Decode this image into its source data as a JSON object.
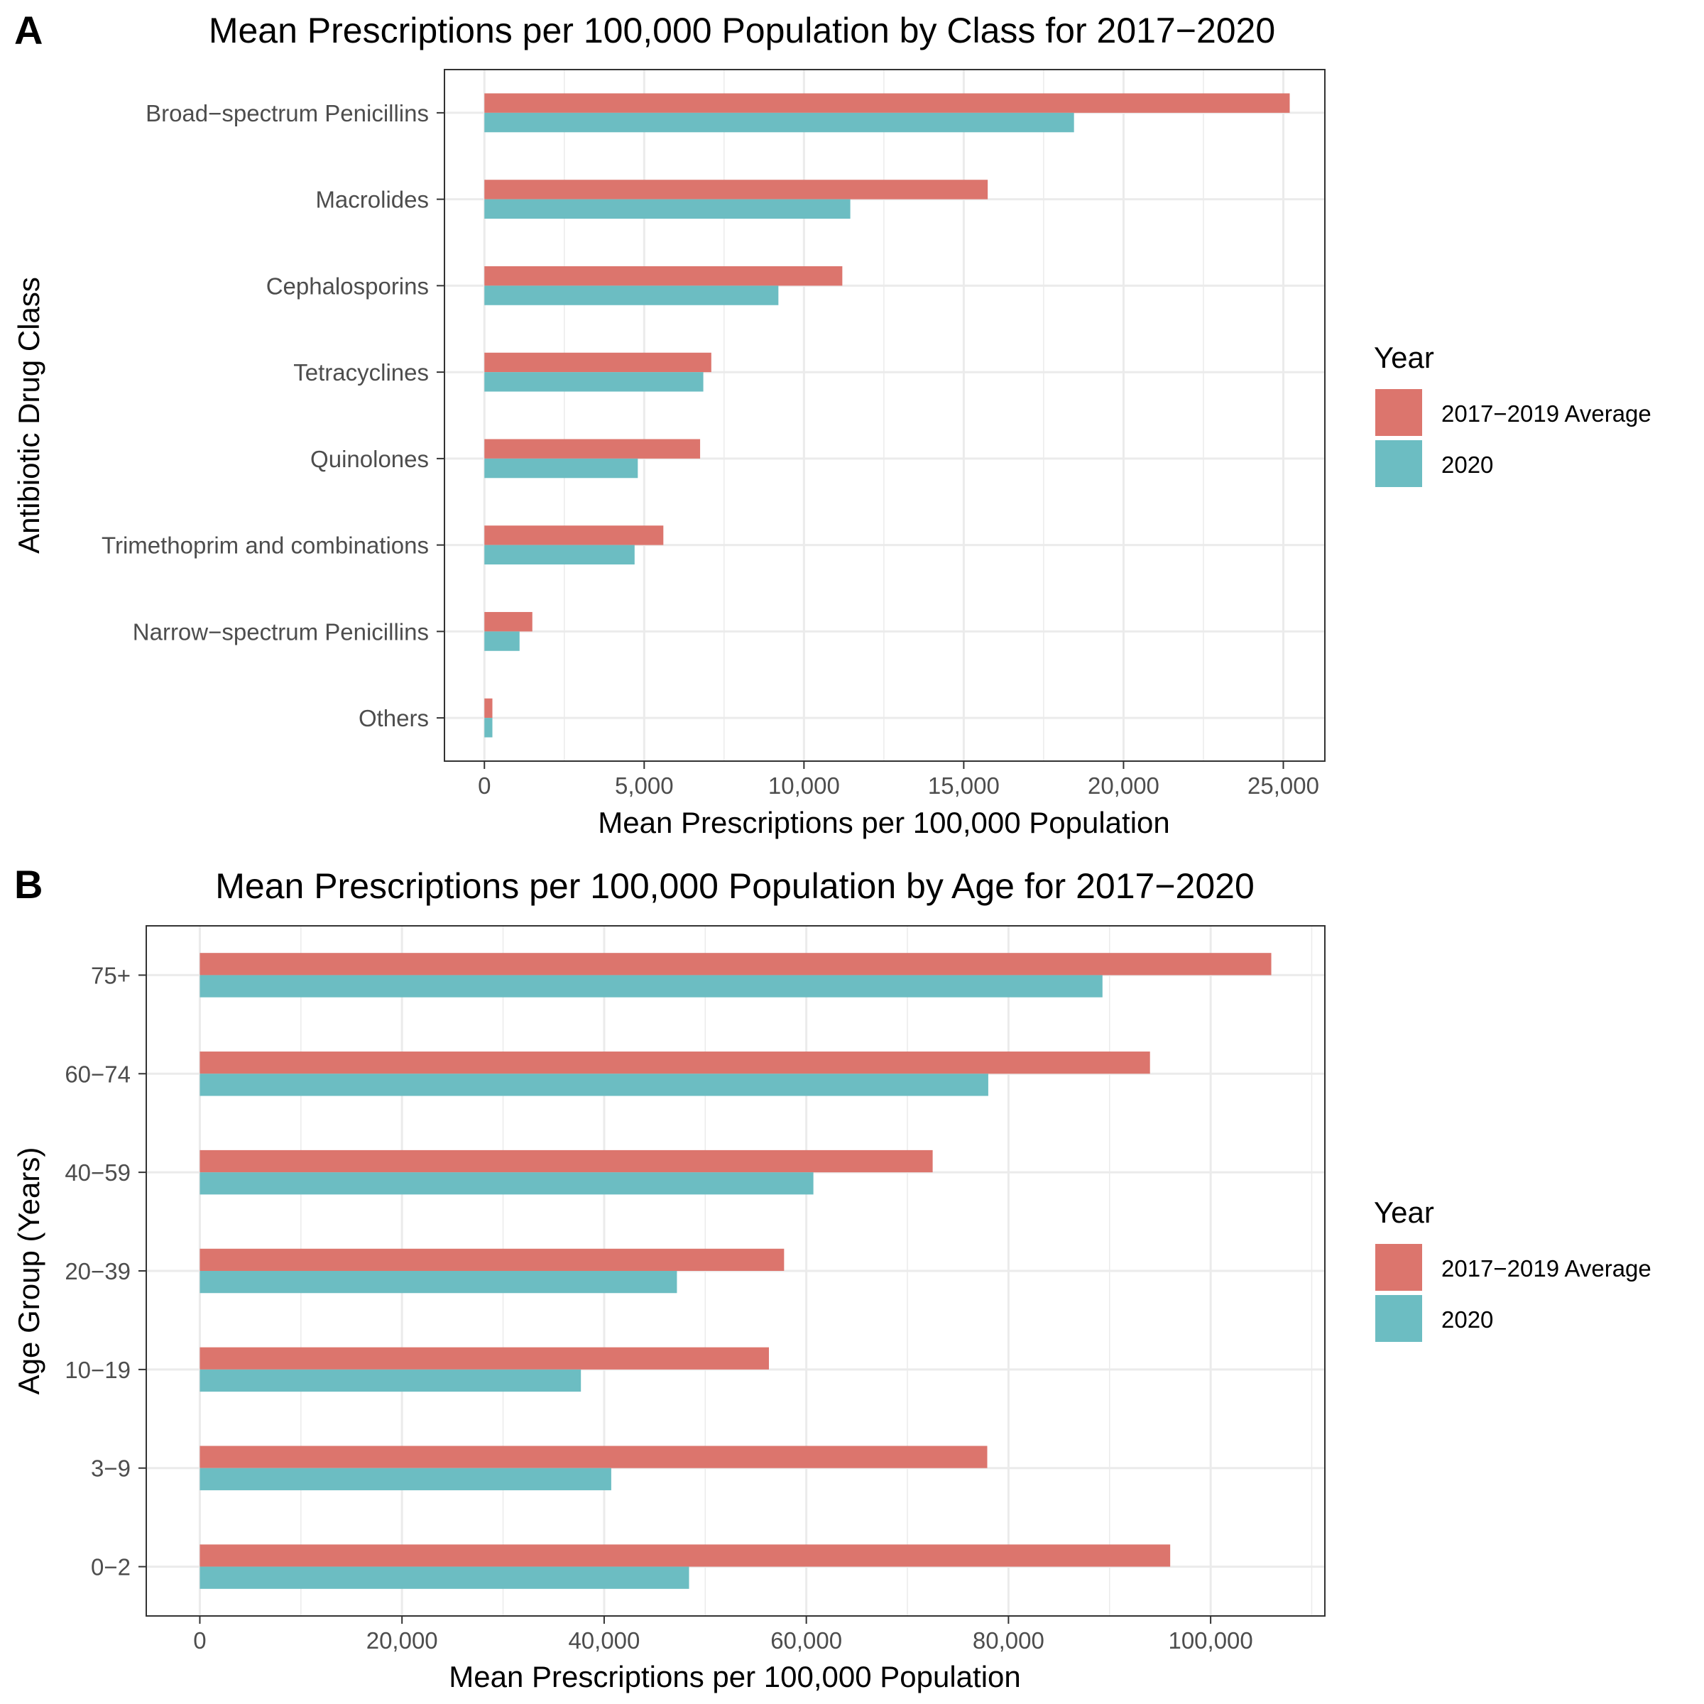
{
  "colors": {
    "s0": "#DC756D",
    "s1": "#6CBDC2",
    "grid": "#ebebeb",
    "frame": "#333333",
    "tick": "#4d4d4d"
  },
  "legend": {
    "title": "Year",
    "items": [
      "2017−2019 Average",
      "2020"
    ]
  },
  "chart_data": [
    {
      "type": "bar",
      "orientation": "horizontal",
      "panel": "A",
      "title": "Mean Prescriptions per 100,000 Population by Class for 2017−2020",
      "xlabel": "Mean Prescriptions per 100,000 Population",
      "ylabel": "Antibiotic Drug Class",
      "xlim": [
        -1250,
        26300
      ],
      "xticks": [
        0,
        5000,
        10000,
        15000,
        20000,
        25000
      ],
      "xtick_labels": [
        "0",
        "5,000",
        "10,000",
        "15,000",
        "20,000",
        "25,000"
      ],
      "categories": [
        "Broad−spectrum Penicillins",
        "Macrolides",
        "Cephalosporins",
        "Tetracyclines",
        "Quinolones",
        "Trimethoprim and combinations",
        "Narrow−spectrum Penicillins",
        "Others"
      ],
      "series": [
        {
          "name": "2017−2019 Average",
          "values": [
            25200,
            15750,
            11200,
            7100,
            6750,
            5600,
            1500,
            250
          ]
        },
        {
          "name": "2020",
          "values": [
            18450,
            11450,
            9200,
            6850,
            4800,
            4700,
            1100,
            250
          ]
        }
      ]
    },
    {
      "type": "bar",
      "orientation": "horizontal",
      "panel": "B",
      "title": "Mean Prescriptions per 100,000 Population by Age for 2017−2020",
      "xlabel": "Mean Prescriptions per 100,000 Population",
      "ylabel": "Age Group (Years)",
      "xlim": [
        -5300,
        111300
      ],
      "xticks": [
        0,
        20000,
        40000,
        60000,
        80000,
        100000
      ],
      "xtick_labels": [
        "0",
        "20,000",
        "40,000",
        "60,000",
        "80,000",
        "100,000"
      ],
      "categories": [
        "75+",
        "60−74",
        "40−59",
        "20−39",
        "10−19",
        "3−9",
        "0−2"
      ],
      "series": [
        {
          "name": "2017−2019 Average",
          "values": [
            106000,
            94000,
            72500,
            57800,
            56300,
            77900,
            96000
          ]
        },
        {
          "name": "2020",
          "values": [
            89300,
            78000,
            60700,
            47200,
            37700,
            40700,
            48400
          ]
        }
      ]
    }
  ]
}
